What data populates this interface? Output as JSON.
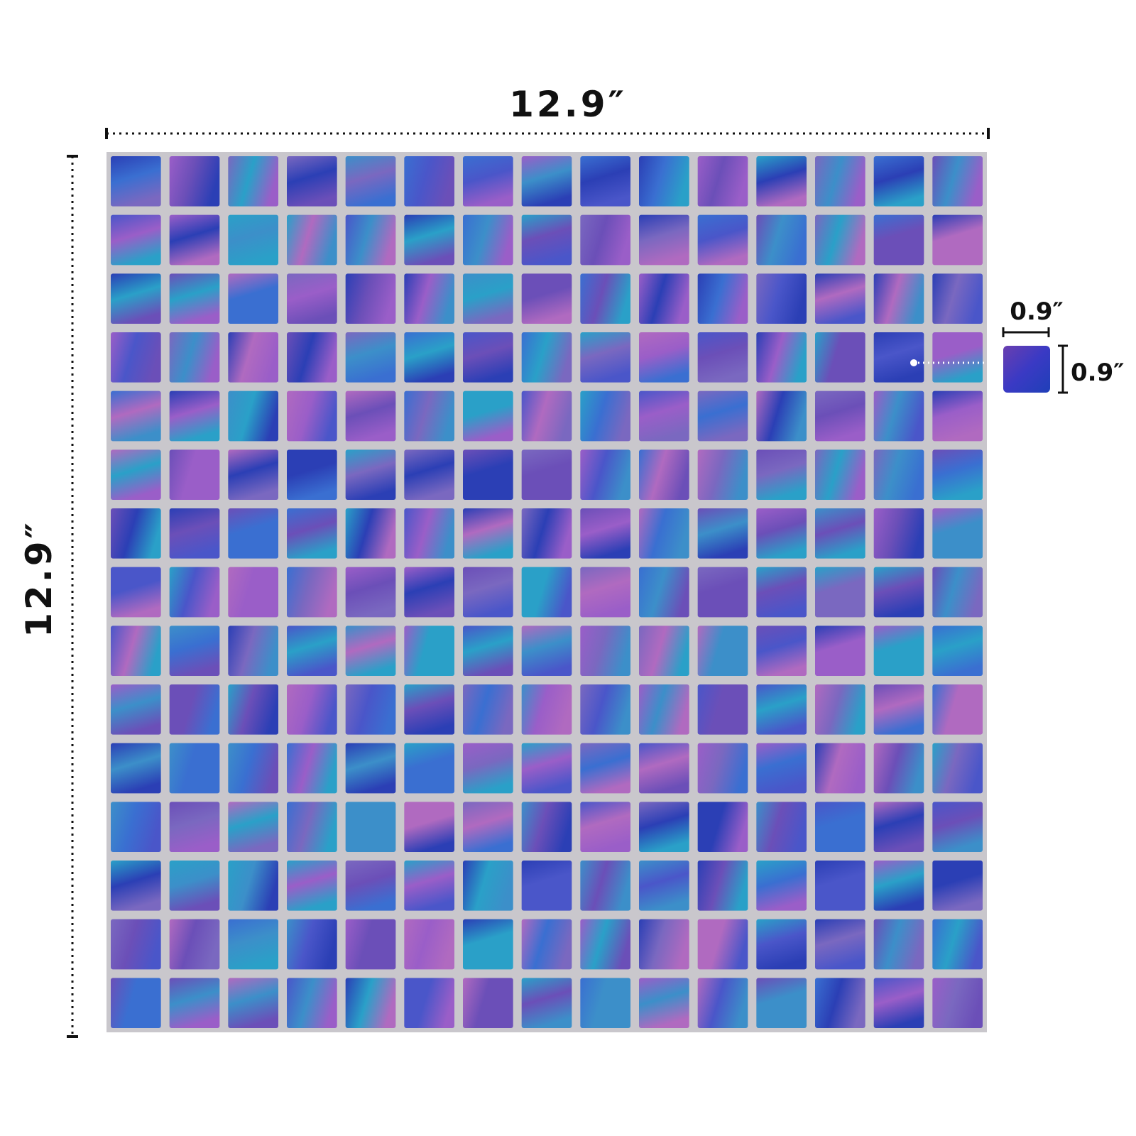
{
  "dimensions": {
    "sheet_width": "12.9″",
    "sheet_height": "12.9″",
    "tile_width": "0.9″",
    "tile_height": "0.9″"
  },
  "mosaic": {
    "rows": 15,
    "columns": 15
  },
  "colors": {
    "tile_palette": [
      "#6b4fb8",
      "#3a6fd1",
      "#2aa0c8",
      "#9a5ec8",
      "#2b3fb5",
      "#7a68c0",
      "#3c8fc9",
      "#b06ac0",
      "#4a56c9"
    ],
    "grout": "#c9c7cc",
    "text": "#111111"
  }
}
